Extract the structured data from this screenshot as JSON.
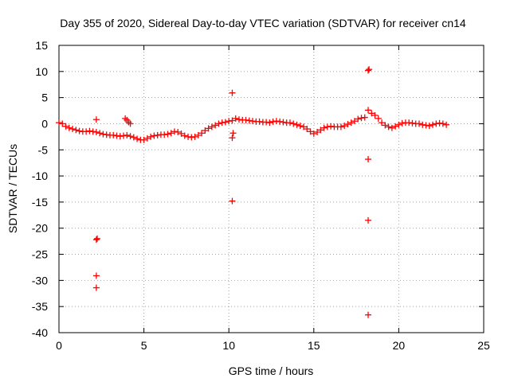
{
  "chart_data": {
    "type": "scatter",
    "title": "Day 355 of 2020, Sidereal Day-to-day VTEC variation (SDTVAR) for receiver cn14",
    "xlabel": "GPS time / hours",
    "ylabel": "SDTVAR / TECUs",
    "xlim": [
      0,
      25
    ],
    "ylim": [
      -40,
      15
    ],
    "xticks": [
      0,
      5,
      10,
      15,
      20,
      25
    ],
    "yticks": [
      15,
      10,
      5,
      0,
      -5,
      -10,
      -15,
      -20,
      -25,
      -30,
      -35,
      -40
    ],
    "grid": true,
    "marker": "plus",
    "color": "#ff0000",
    "series": [
      {
        "name": "SDTVAR",
        "x": [
          0.0,
          0.2,
          0.4,
          0.6,
          0.8,
          1.0,
          1.2,
          1.4,
          1.6,
          1.8,
          2.0,
          2.2,
          2.4,
          2.6,
          2.8,
          3.0,
          3.2,
          3.4,
          3.6,
          3.8,
          4.0,
          4.2,
          4.4,
          4.6,
          4.8,
          5.0,
          5.2,
          5.4,
          5.6,
          5.8,
          6.0,
          6.2,
          6.4,
          6.6,
          6.8,
          7.0,
          7.2,
          7.4,
          7.6,
          7.8,
          8.0,
          8.2,
          8.4,
          8.6,
          8.8,
          9.0,
          9.2,
          9.4,
          9.6,
          9.8,
          10.0,
          10.2,
          10.4,
          10.6,
          10.8,
          11.0,
          11.2,
          11.4,
          11.6,
          11.8,
          12.0,
          12.2,
          12.4,
          12.6,
          12.8,
          13.0,
          13.2,
          13.4,
          13.6,
          13.8,
          14.0,
          14.2,
          14.4,
          14.6,
          14.8,
          15.0,
          15.2,
          15.4,
          15.6,
          15.8,
          16.0,
          16.2,
          16.4,
          16.6,
          16.8,
          17.0,
          17.2,
          17.4,
          17.6,
          17.8,
          18.0,
          18.2,
          18.4,
          18.6,
          18.8,
          19.0,
          19.2,
          19.4,
          19.6,
          19.8,
          20.0,
          20.2,
          20.4,
          20.6,
          20.8,
          21.0,
          21.2,
          21.4,
          21.6,
          21.8,
          22.0,
          22.2,
          22.4,
          22.6,
          22.8,
          3.9,
          4.0,
          4.1,
          4.2,
          2.2,
          2.2,
          2.2,
          2.2,
          2.25,
          10.2,
          10.2,
          10.25,
          10.2,
          18.2,
          18.2,
          18.2,
          18.2,
          18.25
        ],
        "y": [
          0.2,
          0.0,
          -0.5,
          -0.8,
          -1.0,
          -1.2,
          -1.4,
          -1.5,
          -1.5,
          -1.4,
          -1.5,
          -1.6,
          -1.8,
          -2.0,
          -2.1,
          -2.2,
          -2.2,
          -2.3,
          -2.4,
          -2.3,
          -2.2,
          -2.4,
          -2.6,
          -2.9,
          -3.1,
          -3.1,
          -2.8,
          -2.5,
          -2.3,
          -2.2,
          -2.1,
          -2.1,
          -2.0,
          -1.8,
          -1.5,
          -1.6,
          -1.9,
          -2.3,
          -2.5,
          -2.6,
          -2.5,
          -2.2,
          -1.8,
          -1.3,
          -0.9,
          -0.6,
          -0.3,
          0.0,
          0.2,
          0.3,
          0.5,
          0.6,
          1.0,
          0.8,
          0.7,
          0.7,
          0.6,
          0.5,
          0.4,
          0.4,
          0.3,
          0.3,
          0.2,
          0.4,
          0.5,
          0.4,
          0.3,
          0.2,
          0.2,
          0.0,
          -0.2,
          -0.4,
          -0.6,
          -1.0,
          -1.5,
          -1.9,
          -1.6,
          -1.2,
          -0.8,
          -0.6,
          -0.5,
          -0.6,
          -0.6,
          -0.6,
          -0.4,
          -0.1,
          0.2,
          0.5,
          0.9,
          1.1,
          1.2,
          2.6,
          2.0,
          1.6,
          1.0,
          0.2,
          -0.3,
          -0.6,
          -0.8,
          -0.5,
          -0.2,
          0.1,
          0.2,
          0.2,
          0.1,
          0.0,
          0.0,
          -0.2,
          -0.3,
          -0.4,
          -0.2,
          0.0,
          0.1,
          0.0,
          -0.2,
          1.0,
          0.7,
          0.3,
          0.0,
          0.8,
          -22.2,
          -29.1,
          -31.4,
          -22.0,
          5.9,
          -14.8,
          -1.8,
          -2.7,
          10.2,
          -6.8,
          -18.5,
          -36.6,
          10.4
        ]
      }
    ]
  }
}
